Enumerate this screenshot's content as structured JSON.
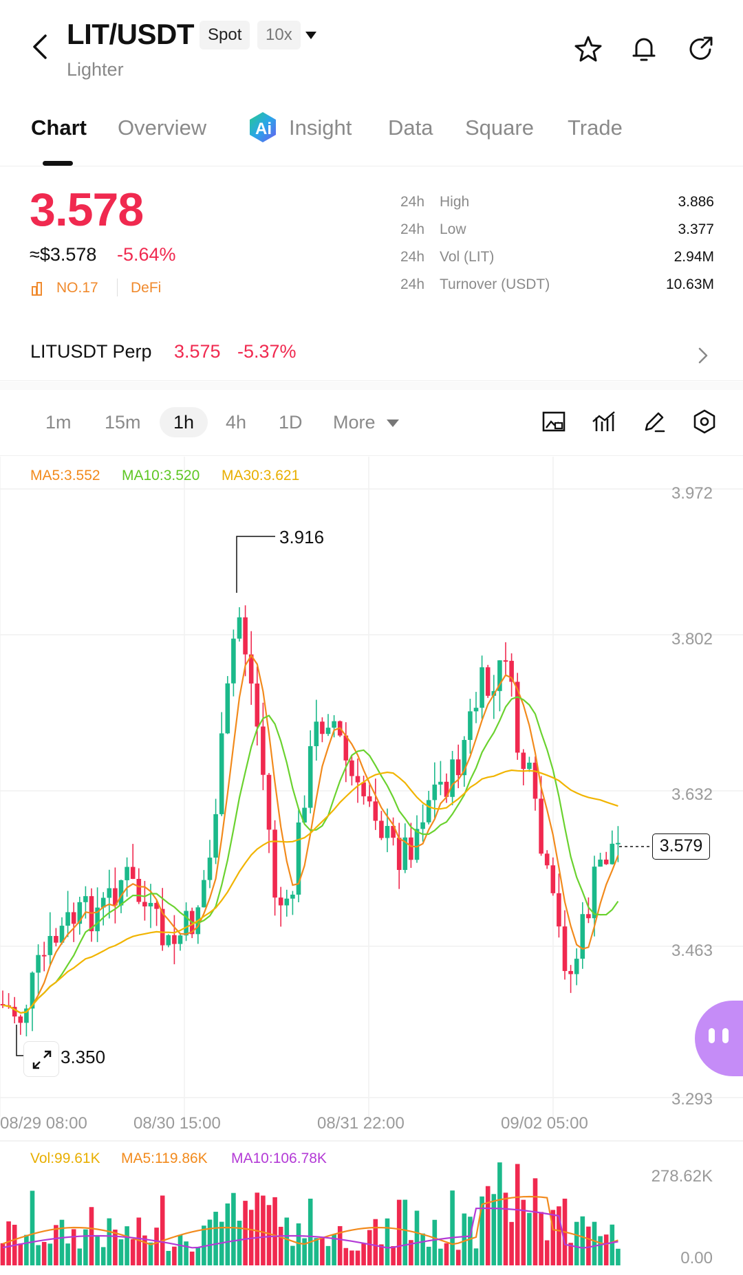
{
  "header": {
    "pair": "LIT/USDT",
    "market_chip": "Spot",
    "leverage_chip": "10x",
    "subname": "Lighter"
  },
  "tabs": [
    "Chart",
    "Overview",
    "Insight",
    "Data",
    "Square",
    "Trade"
  ],
  "ticker": {
    "price": "3.578",
    "usd_price": "≈$3.578",
    "change": "-5.64%",
    "rank": "NO.17",
    "category": "DeFi",
    "stats": [
      {
        "period": "24h",
        "label": "High",
        "value": "3.886"
      },
      {
        "period": "24h",
        "label": "Low",
        "value": "3.377"
      },
      {
        "period": "24h",
        "label": "Vol (LIT)",
        "value": "2.94M"
      },
      {
        "period": "24h",
        "label": "Turnover (USDT)",
        "value": "10.63M"
      }
    ]
  },
  "perp": {
    "name": "LITUSDT Perp",
    "price": "3.575",
    "change": "-5.37%"
  },
  "intervals": {
    "items": [
      "1m",
      "15m",
      "1h",
      "4h",
      "1D"
    ],
    "more": "More",
    "active": "1h"
  },
  "legend": {
    "ma5": "MA5:3.552",
    "ma10": "MA10:3.520",
    "ma30": "MA30:3.621",
    "vol": "Vol:99.61K",
    "vol_ma5": "MA5:119.86K",
    "vol_ma10": "MA10:106.78K"
  },
  "colors": {
    "up": "#1bb98a",
    "down": "#f0294f",
    "ma5": "#f28a1c",
    "ma10": "#6ad22f",
    "ma30": "#f1b400",
    "vol_ma10": "#b33ad6"
  },
  "icons": {
    "back": "chevron-left-icon",
    "favorite": "star-icon",
    "alert": "bell-icon",
    "share": "share-icon",
    "insight": "ai-icon",
    "perp_arrow": "chevron-right-icon",
    "tool_1": "screenshot-icon",
    "tool_2": "indicator-icon",
    "tool_3": "draw-icon",
    "tool_4": "settings-icon",
    "expand": "expand-icon",
    "assistant": "assistant-icon"
  },
  "chart_data": {
    "type": "candlestick",
    "price_axis": {
      "ticks": [
        "3.972",
        "3.802",
        "3.632",
        "3.463",
        "3.293"
      ],
      "range": [
        3.293,
        3.972
      ]
    },
    "time_axis": {
      "ticks": [
        "08/29 08:00",
        "08/30 15:00",
        "08/31 22:00",
        "09/02 05:00"
      ]
    },
    "high_marker": "3.916",
    "low_marker": "3.350",
    "last_price": "3.579",
    "volume_axis": {
      "ticks": [
        "278.62K",
        "0.00"
      ],
      "range": [
        0,
        278620
      ]
    }
  }
}
